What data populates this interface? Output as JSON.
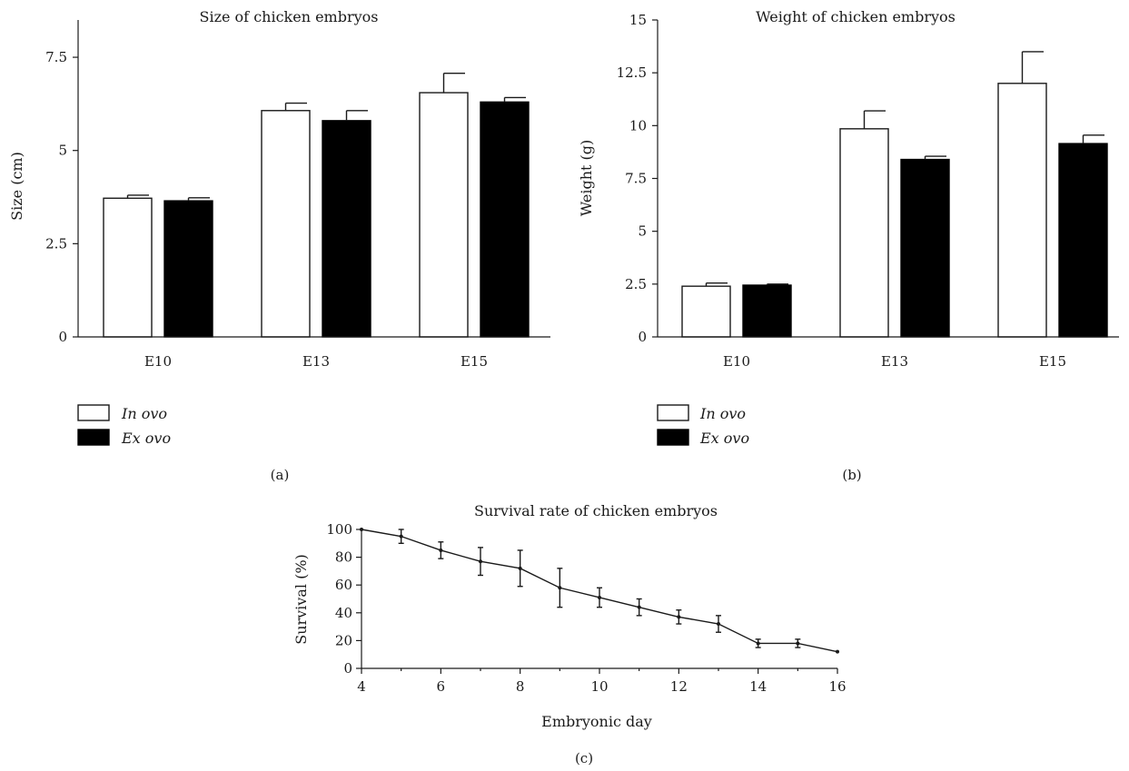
{
  "chart_data": [
    {
      "type": "bar",
      "title": "Size of chicken embryos",
      "ylabel": "Size (cm)",
      "xlabel": "",
      "ylim": [
        0,
        8.5
      ],
      "yticks": [
        "0",
        "2.5",
        "5",
        "7.5"
      ],
      "yticks_values": [
        0,
        2.5,
        5,
        7.5
      ],
      "categories": [
        "E10",
        "E13",
        "E15"
      ],
      "series": [
        {
          "name": "In ovo",
          "values": [
            3.72,
            6.07,
            6.55
          ],
          "errors": [
            0.08,
            0.2,
            0.52
          ]
        },
        {
          "name": "Ex ovo",
          "values": [
            3.65,
            5.8,
            6.3
          ],
          "errors": [
            0.08,
            0.27,
            0.12
          ]
        }
      ],
      "legend_position": "bottom-left",
      "panel_label": "(a)"
    },
    {
      "type": "bar",
      "title": "Weight of chicken embryos",
      "ylabel": "Weight (g)",
      "xlabel": "",
      "ylim": [
        0,
        15
      ],
      "yticks": [
        "0",
        "2.5",
        "5",
        "7.5",
        "10",
        "12.5",
        "15"
      ],
      "yticks_values": [
        0,
        2.5,
        5,
        7.5,
        10,
        12.5,
        15
      ],
      "categories": [
        "E10",
        "E13",
        "E15"
      ],
      "series": [
        {
          "name": "In ovo",
          "values": [
            2.4,
            9.85,
            12.0
          ],
          "errors": [
            0.15,
            0.85,
            1.5
          ]
        },
        {
          "name": "Ex ovo",
          "values": [
            2.45,
            8.4,
            9.15
          ],
          "errors": [
            0.05,
            0.15,
            0.4
          ]
        }
      ],
      "legend_position": "bottom-left",
      "panel_label": "(b)"
    },
    {
      "type": "line",
      "title": "Survival rate of chicken embryos",
      "xlabel": "Embryonic day",
      "ylabel": "Survival (%)",
      "xlim": [
        4,
        16
      ],
      "ylim": [
        0,
        100
      ],
      "xticks": [
        "4",
        "6",
        "8",
        "10",
        "12",
        "14",
        "16"
      ],
      "xticks_values": [
        4,
        6,
        8,
        10,
        12,
        14,
        16
      ],
      "yticks": [
        "0",
        "20",
        "40",
        "60",
        "80",
        "100"
      ],
      "yticks_values": [
        0,
        20,
        40,
        60,
        80,
        100
      ],
      "x": [
        4,
        5,
        6,
        7,
        8,
        9,
        10,
        11,
        12,
        13,
        14,
        15,
        16
      ],
      "y": [
        100,
        95,
        85,
        77,
        72,
        58,
        51,
        44,
        37,
        32,
        18,
        18,
        12
      ],
      "errors": [
        0,
        5,
        6,
        10,
        13,
        14,
        7,
        6,
        5,
        6,
        3,
        3,
        0
      ],
      "panel_label": "(c)"
    }
  ]
}
